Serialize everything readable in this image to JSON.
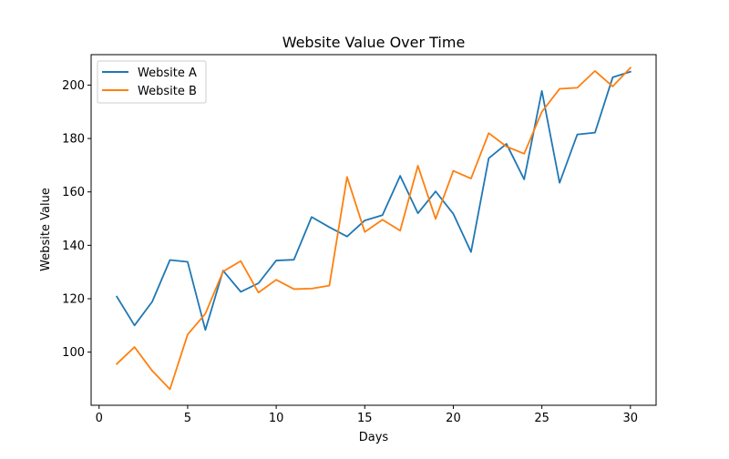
{
  "chart_data": {
    "type": "line",
    "title": "Website Value Over Time",
    "xlabel": "Days",
    "ylabel": "Website Value",
    "xlim": [
      -0.45,
      31.45
    ],
    "ylim": [
      80.1,
      211.4
    ],
    "xticks": [
      0,
      5,
      10,
      15,
      20,
      25,
      30
    ],
    "yticks": [
      100,
      120,
      140,
      160,
      180,
      200
    ],
    "grid": false,
    "legend_position": "upper-left",
    "x": [
      1,
      2,
      3,
      4,
      5,
      6,
      7,
      8,
      9,
      10,
      11,
      12,
      13,
      14,
      15,
      16,
      17,
      18,
      19,
      20,
      21,
      22,
      23,
      24,
      25,
      26,
      27,
      28,
      29,
      30
    ],
    "series": [
      {
        "name": "Website A",
        "color": "#1f77b4",
        "values": [
          120.8,
          110.0,
          118.9,
          134.5,
          133.8,
          108.3,
          130.5,
          122.6,
          125.8,
          134.3,
          134.6,
          150.6,
          146.8,
          143.3,
          149.3,
          151.3,
          166.0,
          152.0,
          160.2,
          151.8,
          137.5,
          172.6,
          178.0,
          164.7,
          197.8,
          163.4,
          181.5,
          182.2,
          202.9,
          205.0
        ]
      },
      {
        "name": "Website B",
        "color": "#ff7f0e",
        "values": [
          95.6,
          101.9,
          93.0,
          86.1,
          106.6,
          114.4,
          130.2,
          134.1,
          122.3,
          127.1,
          123.6,
          123.8,
          124.9,
          165.6,
          145.0,
          149.6,
          145.5,
          169.8,
          149.9,
          167.9,
          165.0,
          182.0,
          177.0,
          174.3,
          190.0,
          198.6,
          199.0,
          205.3,
          199.5,
          206.5
        ]
      }
    ]
  }
}
